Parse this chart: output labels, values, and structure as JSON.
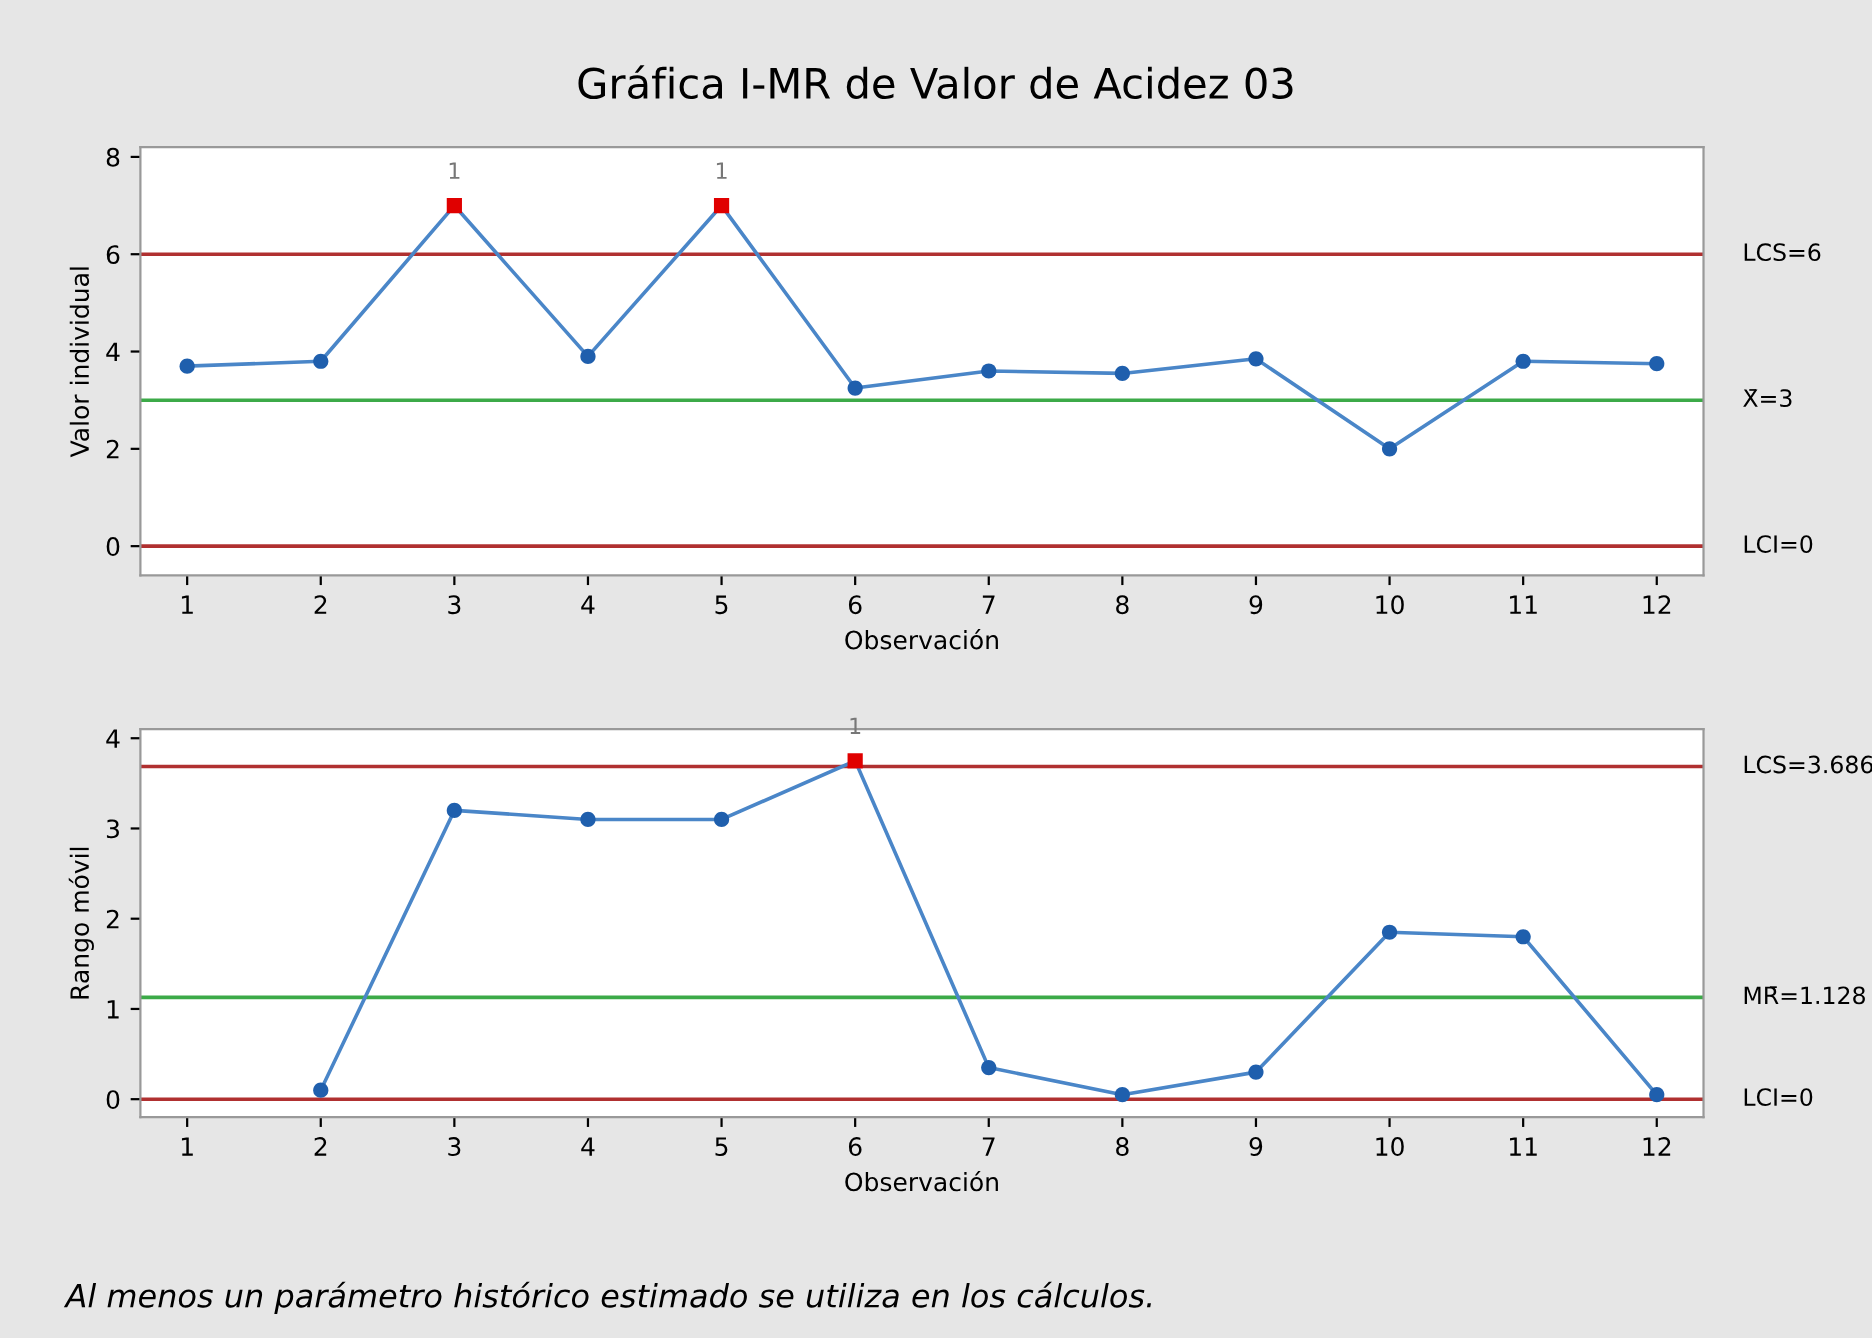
{
  "chart_data": [
    {
      "type": "line",
      "title": "Gráfica I-MR de Valor de Acidez 03",
      "xlabel": "Observación",
      "ylabel": "Valor individual",
      "x": [
        1,
        2,
        3,
        4,
        5,
        6,
        7,
        8,
        9,
        10,
        11,
        12
      ],
      "xlim": [
        0.65,
        12.35
      ],
      "xticks": [
        1,
        2,
        3,
        4,
        5,
        6,
        7,
        8,
        9,
        10,
        11,
        12
      ],
      "ylim": [
        -0.6,
        8.2
      ],
      "yticks": [
        0,
        2,
        4,
        6,
        8
      ],
      "grid": false,
      "series": [
        {
          "color": "#4a86c8",
          "marker": "none",
          "values": [
            3.7,
            3.8,
            7,
            3.9,
            7,
            3.25,
            3.6,
            3.55,
            3.85,
            2,
            3.8,
            3.75
          ]
        },
        {
          "type": "scatter",
          "color": "#1f5fad",
          "marker": "circle",
          "x": [
            1,
            2,
            4,
            6,
            7,
            8,
            9,
            10,
            11,
            12
          ],
          "values": [
            3.7,
            3.8,
            3.9,
            3.25,
            3.6,
            3.55,
            3.85,
            2,
            3.8,
            3.75
          ]
        },
        {
          "type": "scatter",
          "color": "#e00000",
          "marker": "square",
          "x": [
            3,
            5
          ],
          "values": [
            7,
            7
          ]
        }
      ],
      "ref_lines": [
        {
          "axis": "y",
          "value": 6,
          "label": "LCS=6",
          "color": "#b03030"
        },
        {
          "axis": "y",
          "value": 3,
          "label": "X̄=3",
          "color": "#3caa48"
        },
        {
          "axis": "y",
          "value": 0,
          "label": "LCI=0",
          "color": "#b03030"
        }
      ],
      "annotations": [
        {
          "text": "1",
          "x": 3,
          "y": 7
        },
        {
          "text": "1",
          "x": 5,
          "y": 7
        }
      ]
    },
    {
      "type": "line",
      "xlabel": "Observación",
      "ylabel": "Rango móvil",
      "xlim": [
        0.65,
        12.35
      ],
      "xticks": [
        1,
        2,
        3,
        4,
        5,
        6,
        7,
        8,
        9,
        10,
        11,
        12
      ],
      "ylim": [
        -0.2,
        4.1
      ],
      "yticks": [
        0,
        1,
        2,
        3,
        4
      ],
      "grid": false,
      "series": [
        {
          "color": "#4a86c8",
          "marker": "none",
          "x": [
            2,
            3,
            4,
            5,
            6,
            7,
            8,
            9,
            10,
            11,
            12
          ],
          "values": [
            0.1,
            3.2,
            3.1,
            3.1,
            3.75,
            0.35,
            0.05,
            0.3,
            1.85,
            1.8,
            0.05
          ]
        },
        {
          "type": "scatter",
          "color": "#1f5fad",
          "marker": "circle",
          "x": [
            2,
            3,
            4,
            5,
            7,
            8,
            9,
            10,
            11,
            12
          ],
          "values": [
            0.1,
            3.2,
            3.1,
            3.1,
            0.35,
            0.05,
            0.3,
            1.85,
            1.8,
            0.05
          ]
        },
        {
          "type": "scatter",
          "color": "#e00000",
          "marker": "square",
          "x": [
            6
          ],
          "values": [
            3.75
          ]
        }
      ],
      "ref_lines": [
        {
          "axis": "y",
          "value": 3.686,
          "label": "LCS=3.686",
          "color": "#b03030"
        },
        {
          "axis": "y",
          "value": 1.128,
          "label": "MR̄=1.128",
          "color": "#3caa48"
        },
        {
          "axis": "y",
          "value": 0,
          "label": "LCI=0",
          "color": "#b03030"
        }
      ],
      "annotations": [
        {
          "text": "1",
          "x": 6,
          "y": 3.75
        },
        "Al menos un parámetro histórico estimado se utiliza en los cálculos."
      ]
    }
  ]
}
